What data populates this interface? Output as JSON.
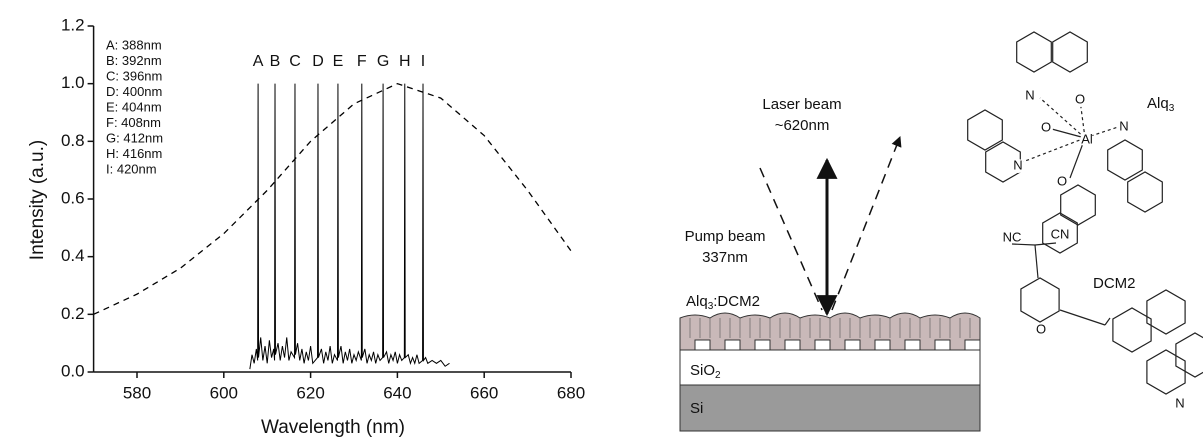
{
  "chart_data": {
    "type": "line",
    "xlabel": "Wavelength (nm)",
    "ylabel": "Intensity (a.u.)",
    "xlim": [
      570,
      680
    ],
    "ylim": [
      0,
      1.2
    ],
    "xticks": [
      580,
      600,
      620,
      640,
      660,
      680
    ],
    "yticks": [
      {
        "value": 0,
        "label": "0.0"
      },
      0.2,
      0.4,
      0.6,
      0.8,
      {
        "value": 1,
        "label": "1.0"
      },
      1.2
    ],
    "legend_text": [
      "A: 388nm",
      "B: 392nm",
      "C: 396nm",
      "D: 400nm",
      "E: 404nm",
      "F: 408nm",
      "G: 412nm",
      "H: 416nm",
      "I: 420nm"
    ],
    "peak_labels": [
      {
        "label": "A",
        "x": 607.9
      },
      {
        "label": "B",
        "x": 611.8
      },
      {
        "label": "C",
        "x": 616.4
      },
      {
        "label": "D",
        "x": 621.7
      },
      {
        "label": "E",
        "x": 626.3
      },
      {
        "label": "F",
        "x": 631.8
      },
      {
        "label": "G",
        "x": 636.7
      },
      {
        "label": "H",
        "x": 641.7
      },
      {
        "label": "I",
        "x": 645.9
      }
    ],
    "series": [
      {
        "color": "#000000",
        "dashed": true,
        "x": [
          570,
          580,
          590,
          600,
          610,
          620,
          630,
          640,
          650,
          660,
          670,
          680
        ],
        "values": [
          0.2,
          0.27,
          0.36,
          0.48,
          0.63,
          0.8,
          0.93,
          1.0,
          0.95,
          0.82,
          0.63,
          0.42
        ]
      },
      {
        "color": "#000000",
        "dashed": false,
        "x": [
          606,
          606.5,
          607,
          607.5,
          607.8,
          607.9,
          608.0,
          608.5,
          609,
          609.5,
          610,
          610.5,
          611,
          611.5,
          611.7,
          611.8,
          611.9,
          612.5,
          613,
          613.5,
          614,
          614.5,
          615,
          615.5,
          616.3,
          616.4,
          616.5,
          617,
          617.5,
          618,
          618.5,
          619,
          619.5,
          620,
          620.5,
          621.6,
          621.7,
          621.8,
          622.5,
          623,
          623.5,
          624,
          624.5,
          625,
          625.5,
          626.2,
          626.3,
          626.4,
          627,
          627.5,
          628,
          628.5,
          629,
          629.5,
          630,
          630.5,
          631,
          631.7,
          631.8,
          631.9,
          632.5,
          633,
          633.5,
          634,
          634.5,
          635,
          635.5,
          636,
          636.6,
          636.7,
          636.8,
          637.5,
          638,
          638.5,
          639,
          639.5,
          640,
          640.5,
          641,
          641.6,
          641.7,
          641.8,
          642.5,
          643,
          643.5,
          644,
          644.5,
          645,
          645.8,
          645.9,
          646,
          646.5,
          647,
          648,
          649,
          650,
          651,
          652
        ],
        "values": [
          0.01,
          0.06,
          0.03,
          0.08,
          0.04,
          1.0,
          0.05,
          0.12,
          0.04,
          0.09,
          0.03,
          0.11,
          0.05,
          0.08,
          0.04,
          1.0,
          0.06,
          0.1,
          0.04,
          0.09,
          0.05,
          0.12,
          0.04,
          0.07,
          0.05,
          1.0,
          0.06,
          0.1,
          0.04,
          0.08,
          0.03,
          0.07,
          0.04,
          0.09,
          0.03,
          0.05,
          1.0,
          0.05,
          0.08,
          0.03,
          0.07,
          0.04,
          0.09,
          0.03,
          0.06,
          0.04,
          1.0,
          0.05,
          0.09,
          0.03,
          0.07,
          0.04,
          0.08,
          0.03,
          0.06,
          0.04,
          0.07,
          0.04,
          1.0,
          0.05,
          0.08,
          0.03,
          0.06,
          0.04,
          0.07,
          0.03,
          0.06,
          0.04,
          0.05,
          1.0,
          0.05,
          0.07,
          0.03,
          0.06,
          0.04,
          0.07,
          0.03,
          0.06,
          0.04,
          0.05,
          1.0,
          0.05,
          0.06,
          0.03,
          0.05,
          0.03,
          0.06,
          0.03,
          0.04,
          1.0,
          0.04,
          0.05,
          0.03,
          0.04,
          0.03,
          0.04,
          0.02,
          0.03
        ]
      }
    ]
  },
  "diagram": {
    "laser_beam": "Laser beam",
    "laser_wavelength": "~620nm",
    "pump_beam": "Pump beam",
    "pump_wavelength": "337nm",
    "film": {
      "base": "Alq",
      "sub": "3",
      "rest": ":DCM2"
    },
    "sio2": {
      "base": "SiO",
      "sub": "2"
    },
    "si": "Si",
    "alq3": {
      "base": "Alq",
      "sub": "3"
    },
    "dcm2": "DCM2",
    "nc": "NC",
    "cn": "CN",
    "atoms": [
      "N",
      "O",
      "O",
      "Al",
      "N",
      "N",
      "O",
      "O",
      "N"
    ]
  }
}
